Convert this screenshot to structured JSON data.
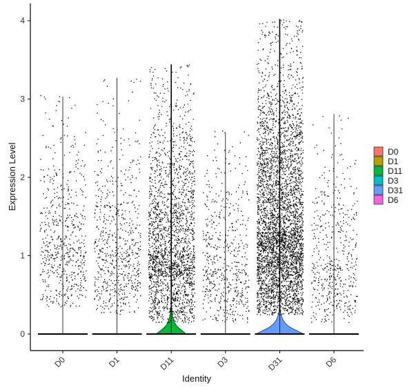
{
  "chart_data": {
    "type": "violin",
    "xlabel": "Identity",
    "ylabel": "Expression Level",
    "ylim": [
      -0.2,
      4.25
    ],
    "yticks": [
      0,
      1,
      2,
      3,
      4
    ],
    "categories": [
      "D0",
      "D1",
      "D11",
      "D3",
      "D31",
      "D6"
    ],
    "colors": {
      "D0": "#F8766D",
      "D1": "#B79F00",
      "D11": "#00BA38",
      "D3": "#00BFC4",
      "D31": "#619CFF",
      "D6": "#F564E3"
    },
    "series": [
      {
        "name": "D0",
        "max": 3.03,
        "violin_halfwidth": 0.0,
        "nonzero_points": 600,
        "nonzero_range": [
          0.35,
          3.05
        ]
      },
      {
        "name": "D1",
        "max": 3.27,
        "violin_halfwidth": 0.0,
        "nonzero_points": 650,
        "nonzero_range": [
          0.25,
          3.28
        ]
      },
      {
        "name": "D11",
        "max": 3.44,
        "violin_halfwidth": 0.6,
        "nonzero_points": 2200,
        "nonzero_range": [
          0.15,
          3.44
        ]
      },
      {
        "name": "D3",
        "max": 2.57,
        "violin_halfwidth": 0.0,
        "nonzero_points": 550,
        "nonzero_range": [
          0.15,
          2.6
        ]
      },
      {
        "name": "D31",
        "max": 4.02,
        "violin_halfwidth": 0.95,
        "nonzero_points": 4200,
        "nonzero_range": [
          0.25,
          4.02
        ]
      },
      {
        "name": "D6",
        "max": 2.81,
        "violin_halfwidth": 0.0,
        "nonzero_points": 500,
        "nonzero_range": [
          0.15,
          2.81
        ]
      }
    ],
    "legend": {
      "position": "right",
      "entries": [
        "D0",
        "D1",
        "D11",
        "D3",
        "D31",
        "D6"
      ]
    },
    "grid": false
  }
}
